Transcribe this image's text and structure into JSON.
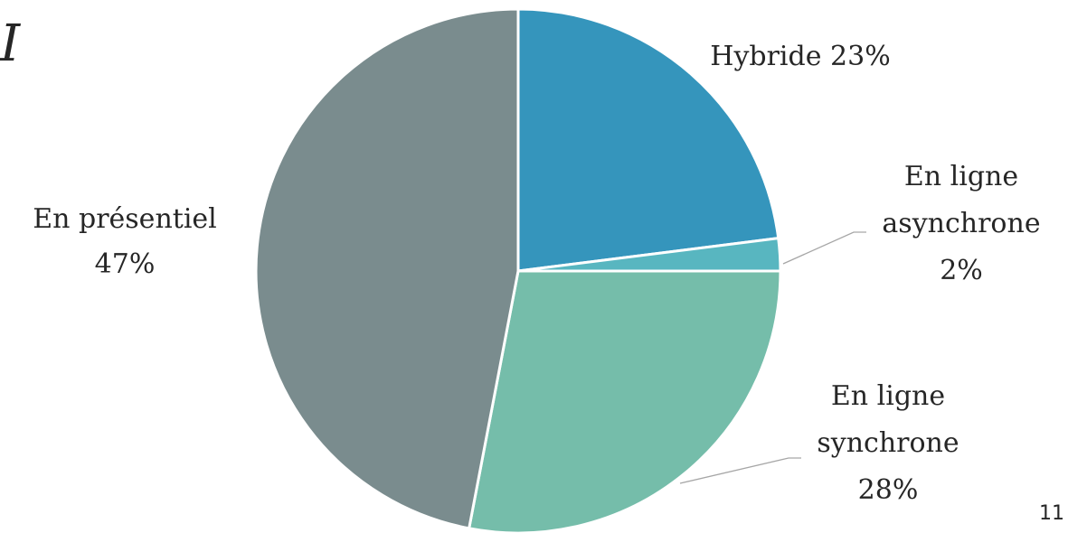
{
  "slide": {
    "title_fragment": "I",
    "page_number": "11"
  },
  "chart_data": {
    "type": "pie",
    "start_angle_deg": 0,
    "direction": "clockwise",
    "slices": [
      {
        "id": "hybride",
        "label": "Hybride",
        "value": 23,
        "value_text": "23%",
        "color": "#3595bc"
      },
      {
        "id": "en-ligne-asynchrone",
        "label": "En ligne asynchrone",
        "value": 2,
        "value_text": "2%",
        "color": "#58b6c0"
      },
      {
        "id": "en-ligne-synchrone",
        "label": "En ligne synchrone",
        "value": 28,
        "value_text": "28%",
        "color": "#75bdaa"
      },
      {
        "id": "en-presentiel",
        "label": "En présentiel",
        "value": 47,
        "value_text": "47%",
        "color": "#7a8c8e"
      }
    ],
    "data_labels": [
      {
        "slice": "hybride",
        "lines": [
          "Hybride 23%"
        ]
      },
      {
        "slice": "en-ligne-asynchrone",
        "lines": [
          "En ligne",
          "asynchrone",
          "2%"
        ]
      },
      {
        "slice": "en-ligne-synchrone",
        "lines": [
          "En ligne",
          "synchrone",
          "28%"
        ]
      },
      {
        "slice": "en-presentiel",
        "lines": [
          "En présentiel",
          "47%"
        ]
      }
    ]
  }
}
